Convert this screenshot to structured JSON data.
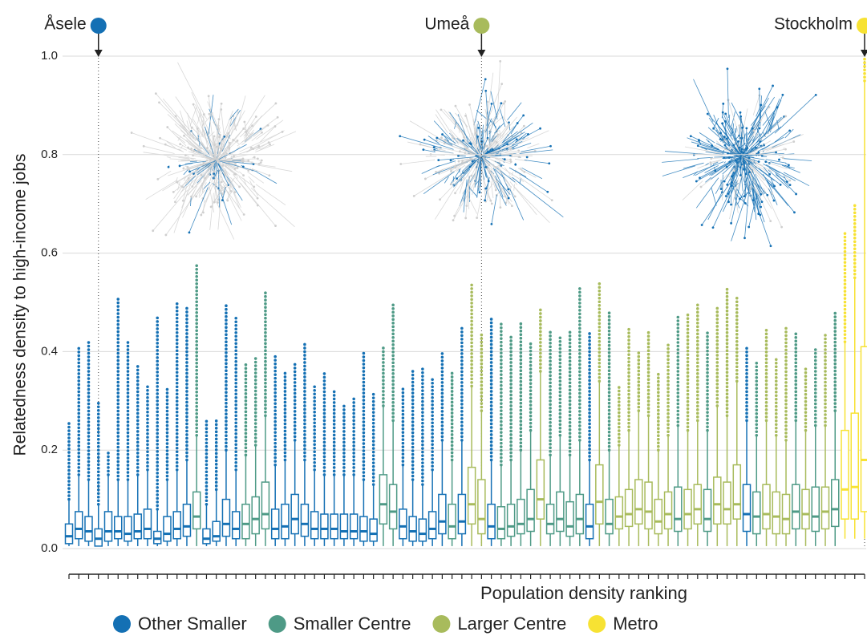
{
  "chart_data": {
    "type": "boxplot",
    "xlabel": "Population density ranking",
    "ylabel": "Relatedness density to high-income jobs",
    "ylim": [
      0,
      1
    ],
    "yticks": [
      {
        "value": 0,
        "label": "0.0"
      },
      0.2,
      0.4,
      0.6,
      0.8,
      {
        "value": 1,
        "label": "1.0"
      }
    ],
    "grid": true,
    "legend": "bottom",
    "groups": [
      {
        "name": "Other Smaller",
        "color": "#1470b4"
      },
      {
        "name": "Smaller Centre",
        "color": "#4e9a86"
      },
      {
        "name": "Larger Centre",
        "color": "#a8bb5c"
      },
      {
        "name": "Metro",
        "color": "#f7e233"
      }
    ],
    "boxes": [
      {
        "group": "Other Smaller",
        "whislo": 0.005,
        "q1": 0.01,
        "median": 0.025,
        "q3": 0.05,
        "whishi": 0.1,
        "max": 0.26
      },
      {
        "group": "Other Smaller",
        "whislo": 0.005,
        "q1": 0.02,
        "median": 0.04,
        "q3": 0.075,
        "whishi": 0.15,
        "max": 0.41
      },
      {
        "group": "Other Smaller",
        "whislo": 0.005,
        "q1": 0.015,
        "median": 0.035,
        "q3": 0.065,
        "whishi": 0.14,
        "max": 0.42
      },
      {
        "group": "Other Smaller",
        "label": "Åsele",
        "whislo": 0.005,
        "q1": 0.005,
        "median": 0.02,
        "q3": 0.04,
        "whishi": 0.09,
        "max": 0.3
      },
      {
        "group": "Other Smaller",
        "whislo": 0.005,
        "q1": 0.015,
        "median": 0.035,
        "q3": 0.075,
        "whishi": 0.15,
        "max": 0.2
      },
      {
        "group": "Other Smaller",
        "whislo": 0.005,
        "q1": 0.02,
        "median": 0.035,
        "q3": 0.065,
        "whishi": 0.14,
        "max": 0.51
      },
      {
        "group": "Other Smaller",
        "whislo": 0.005,
        "q1": 0.015,
        "median": 0.03,
        "q3": 0.065,
        "whishi": 0.14,
        "max": 0.42
      },
      {
        "group": "Other Smaller",
        "whislo": 0.005,
        "q1": 0.02,
        "median": 0.035,
        "q3": 0.07,
        "whishi": 0.15,
        "max": 0.37
      },
      {
        "group": "Other Smaller",
        "whislo": 0.005,
        "q1": 0.02,
        "median": 0.04,
        "q3": 0.08,
        "whishi": 0.16,
        "max": 0.33
      },
      {
        "group": "Other Smaller",
        "whislo": 0.005,
        "q1": 0.01,
        "median": 0.02,
        "q3": 0.035,
        "whishi": 0.08,
        "max": 0.47
      },
      {
        "group": "Other Smaller",
        "whislo": 0.005,
        "q1": 0.015,
        "median": 0.03,
        "q3": 0.065,
        "whishi": 0.14,
        "max": 0.33
      },
      {
        "group": "Other Smaller",
        "whislo": 0.005,
        "q1": 0.02,
        "median": 0.04,
        "q3": 0.075,
        "whishi": 0.16,
        "max": 0.5
      },
      {
        "group": "Other Smaller",
        "whislo": 0.005,
        "q1": 0.025,
        "median": 0.045,
        "q3": 0.09,
        "whishi": 0.18,
        "max": 0.49
      },
      {
        "group": "Smaller Centre",
        "whislo": 0.005,
        "q1": 0.04,
        "median": 0.065,
        "q3": 0.115,
        "whishi": 0.23,
        "max": 0.58
      },
      {
        "group": "Other Smaller",
        "whislo": 0.005,
        "q1": 0.01,
        "median": 0.02,
        "q3": 0.04,
        "whishi": 0.09,
        "max": 0.26
      },
      {
        "group": "Other Smaller",
        "whislo": 0.005,
        "q1": 0.015,
        "median": 0.025,
        "q3": 0.055,
        "whishi": 0.12,
        "max": 0.26
      },
      {
        "group": "Other Smaller",
        "whislo": 0.005,
        "q1": 0.025,
        "median": 0.05,
        "q3": 0.1,
        "whishi": 0.2,
        "max": 0.5
      },
      {
        "group": "Other Smaller",
        "whislo": 0.005,
        "q1": 0.02,
        "median": 0.04,
        "q3": 0.075,
        "whishi": 0.16,
        "max": 0.47
      },
      {
        "group": "Smaller Centre",
        "whislo": 0.005,
        "q1": 0.02,
        "median": 0.05,
        "q3": 0.09,
        "whishi": 0.19,
        "max": 0.38
      },
      {
        "group": "Smaller Centre",
        "whislo": 0.005,
        "q1": 0.03,
        "median": 0.06,
        "q3": 0.105,
        "whishi": 0.21,
        "max": 0.39
      },
      {
        "group": "Smaller Centre",
        "whislo": 0.005,
        "q1": 0.04,
        "median": 0.07,
        "q3": 0.135,
        "whishi": 0.27,
        "max": 0.52
      },
      {
        "group": "Other Smaller",
        "whislo": 0.005,
        "q1": 0.02,
        "median": 0.04,
        "q3": 0.08,
        "whishi": 0.17,
        "max": 0.39
      },
      {
        "group": "Other Smaller",
        "whislo": 0.005,
        "q1": 0.02,
        "median": 0.045,
        "q3": 0.09,
        "whishi": 0.18,
        "max": 0.36
      },
      {
        "group": "Other Smaller",
        "whislo": 0.005,
        "q1": 0.03,
        "median": 0.06,
        "q3": 0.11,
        "whishi": 0.22,
        "max": 0.38
      },
      {
        "group": "Other Smaller",
        "whislo": 0.005,
        "q1": 0.025,
        "median": 0.05,
        "q3": 0.09,
        "whishi": 0.18,
        "max": 0.42
      },
      {
        "group": "Other Smaller",
        "whislo": 0.005,
        "q1": 0.02,
        "median": 0.04,
        "q3": 0.075,
        "whishi": 0.16,
        "max": 0.33
      },
      {
        "group": "Other Smaller",
        "whislo": 0.005,
        "q1": 0.02,
        "median": 0.04,
        "q3": 0.07,
        "whishi": 0.15,
        "max": 0.36
      },
      {
        "group": "Other Smaller",
        "whislo": 0.005,
        "q1": 0.02,
        "median": 0.04,
        "q3": 0.07,
        "whishi": 0.15,
        "max": 0.32
      },
      {
        "group": "Other Smaller",
        "whislo": 0.005,
        "q1": 0.02,
        "median": 0.035,
        "q3": 0.07,
        "whishi": 0.15,
        "max": 0.29
      },
      {
        "group": "Other Smaller",
        "whislo": 0.005,
        "q1": 0.02,
        "median": 0.035,
        "q3": 0.07,
        "whishi": 0.15,
        "max": 0.31
      },
      {
        "group": "Other Smaller",
        "whislo": 0.005,
        "q1": 0.015,
        "median": 0.035,
        "q3": 0.065,
        "whishi": 0.14,
        "max": 0.4
      },
      {
        "group": "Other Smaller",
        "whislo": 0.005,
        "q1": 0.015,
        "median": 0.03,
        "q3": 0.06,
        "whishi": 0.13,
        "max": 0.32
      },
      {
        "group": "Smaller Centre",
        "whislo": 0.005,
        "q1": 0.05,
        "median": 0.09,
        "q3": 0.15,
        "whishi": 0.29,
        "max": 0.41
      },
      {
        "group": "Smaller Centre",
        "whislo": 0.005,
        "q1": 0.04,
        "median": 0.075,
        "q3": 0.13,
        "whishi": 0.26,
        "max": 0.5
      },
      {
        "group": "Other Smaller",
        "whislo": 0.005,
        "q1": 0.02,
        "median": 0.045,
        "q3": 0.08,
        "whishi": 0.17,
        "max": 0.33
      },
      {
        "group": "Other Smaller",
        "whislo": 0.005,
        "q1": 0.015,
        "median": 0.035,
        "q3": 0.065,
        "whishi": 0.14,
        "max": 0.36
      },
      {
        "group": "Other Smaller",
        "whislo": 0.005,
        "q1": 0.015,
        "median": 0.03,
        "q3": 0.06,
        "whishi": 0.13,
        "max": 0.37
      },
      {
        "group": "Other Smaller",
        "whislo": 0.005,
        "q1": 0.02,
        "median": 0.04,
        "q3": 0.075,
        "whishi": 0.16,
        "max": 0.35
      },
      {
        "group": "Other Smaller",
        "whislo": 0.005,
        "q1": 0.03,
        "median": 0.055,
        "q3": 0.11,
        "whishi": 0.22,
        "max": 0.4
      },
      {
        "group": "Smaller Centre",
        "whislo": 0.005,
        "q1": 0.02,
        "median": 0.045,
        "q3": 0.09,
        "whishi": 0.18,
        "max": 0.36
      },
      {
        "group": "Other Smaller",
        "whislo": 0.005,
        "q1": 0.03,
        "median": 0.055,
        "q3": 0.11,
        "whishi": 0.22,
        "max": 0.45
      },
      {
        "group": "Larger Centre",
        "whislo": 0.005,
        "q1": 0.05,
        "median": 0.09,
        "q3": 0.165,
        "whishi": 0.33,
        "max": 0.54
      },
      {
        "group": "Larger Centre",
        "label": "Umeå",
        "whislo": 0.005,
        "q1": 0.03,
        "median": 0.06,
        "q3": 0.14,
        "whishi": 0.28,
        "max": 0.44
      },
      {
        "group": "Other Smaller",
        "whislo": 0.005,
        "q1": 0.02,
        "median": 0.045,
        "q3": 0.09,
        "whishi": 0.18,
        "max": 0.47
      },
      {
        "group": "Smaller Centre",
        "whislo": 0.005,
        "q1": 0.02,
        "median": 0.04,
        "q3": 0.085,
        "whishi": 0.17,
        "max": 0.46
      },
      {
        "group": "Smaller Centre",
        "whislo": 0.005,
        "q1": 0.025,
        "median": 0.045,
        "q3": 0.09,
        "whishi": 0.18,
        "max": 0.43
      },
      {
        "group": "Smaller Centre",
        "whislo": 0.005,
        "q1": 0.03,
        "median": 0.05,
        "q3": 0.1,
        "whishi": 0.2,
        "max": 0.46
      },
      {
        "group": "Smaller Centre",
        "whislo": 0.005,
        "q1": 0.035,
        "median": 0.06,
        "q3": 0.12,
        "whishi": 0.24,
        "max": 0.42
      },
      {
        "group": "Larger Centre",
        "whislo": 0.005,
        "q1": 0.06,
        "median": 0.1,
        "q3": 0.18,
        "whishi": 0.36,
        "max": 0.49
      },
      {
        "group": "Smaller Centre",
        "whislo": 0.005,
        "q1": 0.03,
        "median": 0.05,
        "q3": 0.09,
        "whishi": 0.19,
        "max": 0.44
      },
      {
        "group": "Smaller Centre",
        "whislo": 0.005,
        "q1": 0.035,
        "median": 0.06,
        "q3": 0.115,
        "whishi": 0.23,
        "max": 0.43
      },
      {
        "group": "Smaller Centre",
        "whislo": 0.005,
        "q1": 0.025,
        "median": 0.045,
        "q3": 0.095,
        "whishi": 0.19,
        "max": 0.44
      },
      {
        "group": "Smaller Centre",
        "whislo": 0.005,
        "q1": 0.03,
        "median": 0.06,
        "q3": 0.11,
        "whishi": 0.22,
        "max": 0.53
      },
      {
        "group": "Other Smaller",
        "whislo": 0.005,
        "q1": 0.02,
        "median": 0.045,
        "q3": 0.09,
        "whishi": 0.18,
        "max": 0.44
      },
      {
        "group": "Larger Centre",
        "whislo": 0.005,
        "q1": 0.05,
        "median": 0.095,
        "q3": 0.17,
        "whishi": 0.34,
        "max": 0.54
      },
      {
        "group": "Smaller Centre",
        "whislo": 0.005,
        "q1": 0.03,
        "median": 0.05,
        "q3": 0.1,
        "whishi": 0.2,
        "max": 0.48
      },
      {
        "group": "Larger Centre",
        "whislo": 0.005,
        "q1": 0.04,
        "median": 0.065,
        "q3": 0.105,
        "whishi": 0.21,
        "max": 0.33
      },
      {
        "group": "Larger Centre",
        "whislo": 0.005,
        "q1": 0.045,
        "median": 0.07,
        "q3": 0.12,
        "whishi": 0.24,
        "max": 0.45
      },
      {
        "group": "Larger Centre",
        "whislo": 0.005,
        "q1": 0.05,
        "median": 0.08,
        "q3": 0.14,
        "whishi": 0.28,
        "max": 0.4
      },
      {
        "group": "Larger Centre",
        "whislo": 0.005,
        "q1": 0.04,
        "median": 0.075,
        "q3": 0.135,
        "whishi": 0.27,
        "max": 0.44
      },
      {
        "group": "Larger Centre",
        "whislo": 0.005,
        "q1": 0.03,
        "median": 0.055,
        "q3": 0.1,
        "whishi": 0.2,
        "max": 0.36
      },
      {
        "group": "Larger Centre",
        "whislo": 0.005,
        "q1": 0.04,
        "median": 0.07,
        "q3": 0.115,
        "whishi": 0.23,
        "max": 0.42
      },
      {
        "group": "Smaller Centre",
        "whislo": 0.005,
        "q1": 0.035,
        "median": 0.06,
        "q3": 0.125,
        "whishi": 0.25,
        "max": 0.47
      },
      {
        "group": "Larger Centre",
        "whislo": 0.005,
        "q1": 0.04,
        "median": 0.07,
        "q3": 0.12,
        "whishi": 0.24,
        "max": 0.48
      },
      {
        "group": "Larger Centre",
        "whislo": 0.005,
        "q1": 0.05,
        "median": 0.08,
        "q3": 0.13,
        "whishi": 0.26,
        "max": 0.5
      },
      {
        "group": "Smaller Centre",
        "whislo": 0.005,
        "q1": 0.035,
        "median": 0.06,
        "q3": 0.12,
        "whishi": 0.24,
        "max": 0.44
      },
      {
        "group": "Larger Centre",
        "whislo": 0.005,
        "q1": 0.05,
        "median": 0.09,
        "q3": 0.145,
        "whishi": 0.29,
        "max": 0.49
      },
      {
        "group": "Larger Centre",
        "whislo": 0.005,
        "q1": 0.05,
        "median": 0.08,
        "q3": 0.135,
        "whishi": 0.27,
        "max": 0.53
      },
      {
        "group": "Larger Centre",
        "whislo": 0.005,
        "q1": 0.06,
        "median": 0.09,
        "q3": 0.17,
        "whishi": 0.34,
        "max": 0.51
      },
      {
        "group": "Other Smaller",
        "whislo": 0.005,
        "q1": 0.035,
        "median": 0.07,
        "q3": 0.13,
        "whishi": 0.26,
        "max": 0.41
      },
      {
        "group": "Smaller Centre",
        "whislo": 0.005,
        "q1": 0.03,
        "median": 0.065,
        "q3": 0.115,
        "whishi": 0.23,
        "max": 0.38
      },
      {
        "group": "Larger Centre",
        "whislo": 0.005,
        "q1": 0.04,
        "median": 0.07,
        "q3": 0.13,
        "whishi": 0.26,
        "max": 0.45
      },
      {
        "group": "Larger Centre",
        "whislo": 0.005,
        "q1": 0.03,
        "median": 0.065,
        "q3": 0.115,
        "whishi": 0.23,
        "max": 0.39
      },
      {
        "group": "Larger Centre",
        "whislo": 0.005,
        "q1": 0.03,
        "median": 0.06,
        "q3": 0.11,
        "whishi": 0.22,
        "max": 0.45
      },
      {
        "group": "Smaller Centre",
        "whislo": 0.005,
        "q1": 0.04,
        "median": 0.075,
        "q3": 0.13,
        "whishi": 0.26,
        "max": 0.44
      },
      {
        "group": "Larger Centre",
        "whislo": 0.005,
        "q1": 0.04,
        "median": 0.07,
        "q3": 0.12,
        "whishi": 0.24,
        "max": 0.37
      },
      {
        "group": "Smaller Centre",
        "whislo": 0.005,
        "q1": 0.035,
        "median": 0.065,
        "q3": 0.125,
        "whishi": 0.25,
        "max": 0.41
      },
      {
        "group": "Larger Centre",
        "whislo": 0.005,
        "q1": 0.04,
        "median": 0.075,
        "q3": 0.125,
        "whishi": 0.25,
        "max": 0.44
      },
      {
        "group": "Smaller Centre",
        "whislo": 0.005,
        "q1": 0.045,
        "median": 0.08,
        "q3": 0.14,
        "whishi": 0.28,
        "max": 0.48
      },
      {
        "group": "Metro",
        "whislo": 0.02,
        "q1": 0.06,
        "median": 0.12,
        "q3": 0.24,
        "whishi": 0.42,
        "max": 0.64
      },
      {
        "group": "Metro",
        "whislo": 0.02,
        "q1": 0.06,
        "median": 0.125,
        "q3": 0.275,
        "whishi": 0.55,
        "max": 0.7
      },
      {
        "group": "Metro",
        "label": "Stockholm",
        "whislo": 0.02,
        "q1": 0.075,
        "median": 0.18,
        "q3": 0.41,
        "whishi": 0.95,
        "max": 1.0
      }
    ]
  }
}
